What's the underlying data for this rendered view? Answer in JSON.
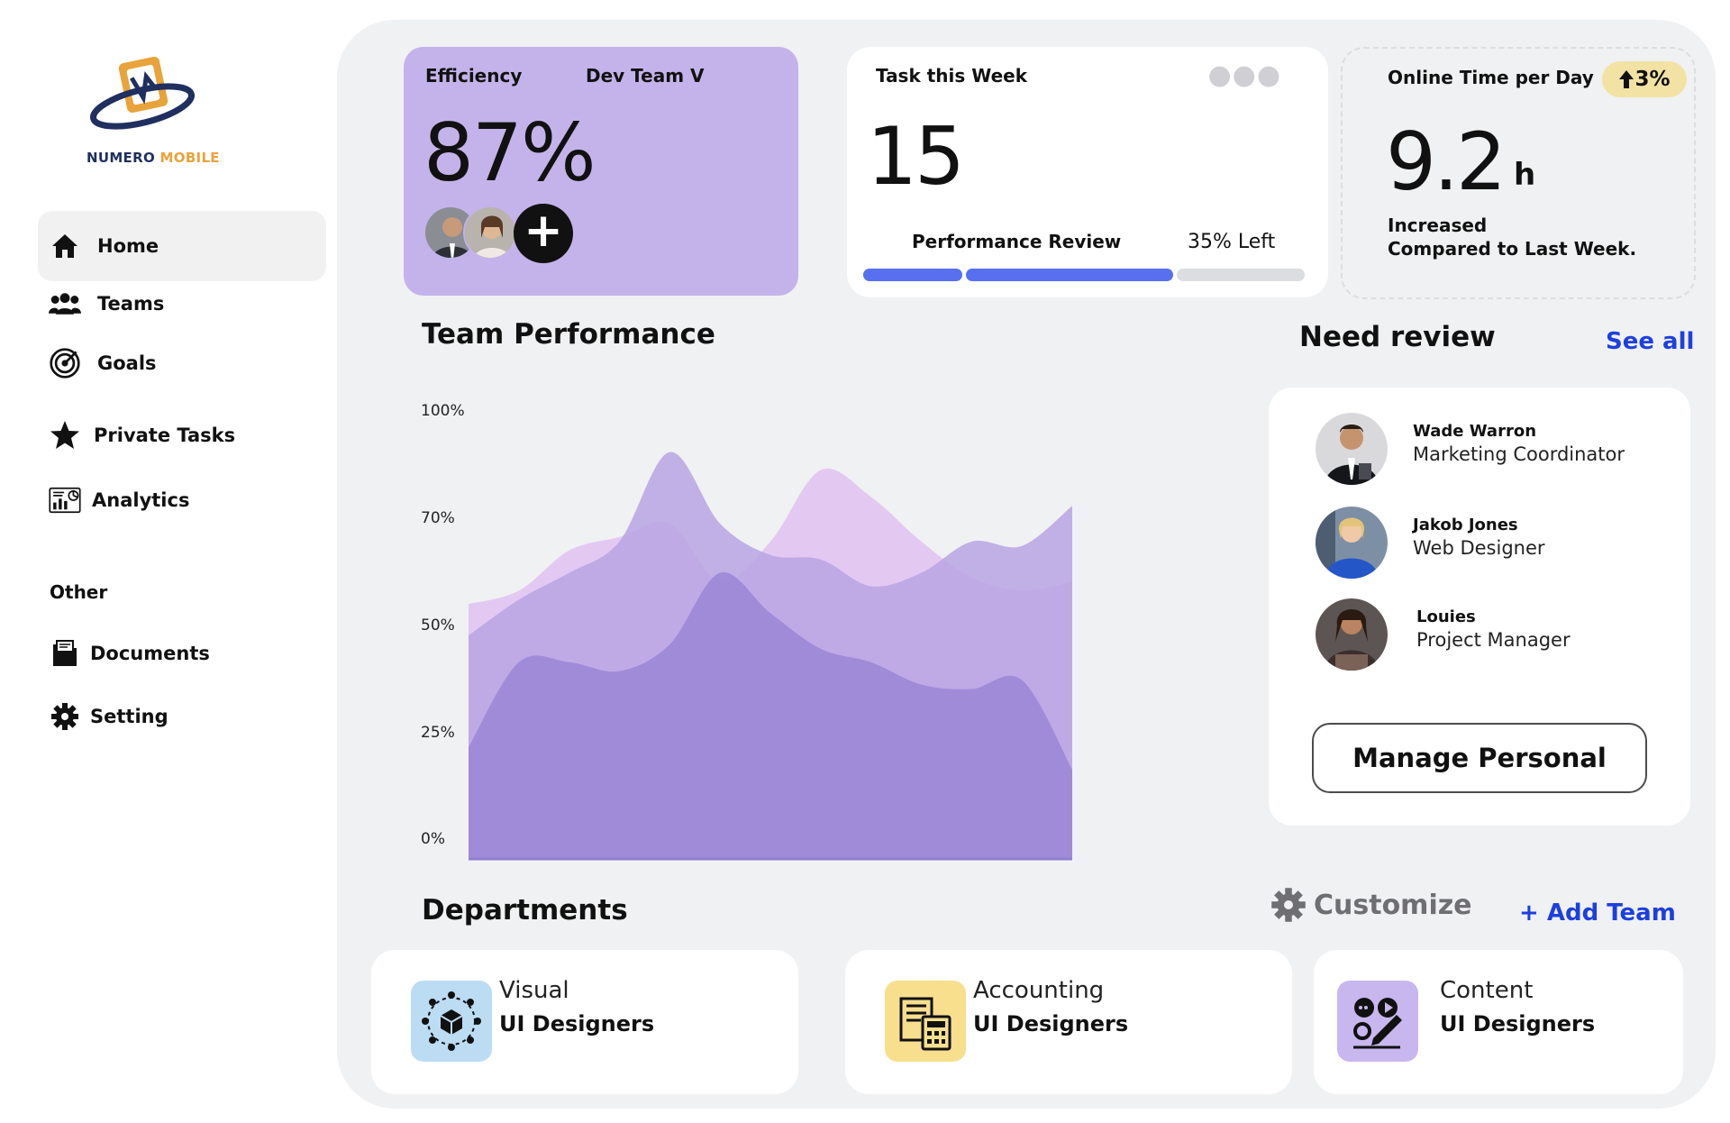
{
  "brand": {
    "name_part1": "NUMERO",
    "name_part2": "MOBILE",
    "colors": {
      "navy": "#1f2f5f",
      "gold": "#e8a33a"
    }
  },
  "sidebar": {
    "items": [
      {
        "label": "Home",
        "icon": "home-icon",
        "active": true
      },
      {
        "label": "Teams",
        "icon": "users-icon"
      },
      {
        "label": "Goals",
        "icon": "target-icon"
      },
      {
        "label": "Private Tasks",
        "icon": "star-icon"
      },
      {
        "label": "Analytics",
        "icon": "analytics-icon"
      }
    ],
    "other_label": "Other",
    "other_items": [
      {
        "label": "Documents",
        "icon": "documents-icon"
      },
      {
        "label": "Setting",
        "icon": "gear-icon"
      }
    ]
  },
  "efficiency": {
    "label": "Efficiency",
    "team_select": "Dev Team V",
    "value": "87%",
    "add_symbol": "+"
  },
  "tasks": {
    "label": "Task this Week",
    "value": "15",
    "review_label": "Performance Review",
    "left_label": "35% Left",
    "progress": 0.65
  },
  "online": {
    "label": "Online Time per Day",
    "badge": "3%",
    "value": "9.2",
    "unit": "h",
    "sub1": "Increased",
    "sub2": "Compared to Last Week."
  },
  "team_performance": {
    "title": "Team Performance"
  },
  "chart_data": {
    "type": "area",
    "title": "Team Performance",
    "y_ticks": [
      "100%",
      "70%",
      "50%",
      "25%",
      "0%"
    ],
    "y_tick_values": [
      100,
      70,
      50,
      25,
      0
    ],
    "ylim": [
      0,
      100
    ],
    "x": [
      0,
      1,
      2,
      3,
      4,
      5,
      6,
      7,
      8,
      9,
      10,
      11,
      12
    ],
    "series": [
      {
        "values": [
          57,
          60,
          69,
          72,
          75,
          62,
          71,
          87,
          81,
          71,
          63,
          60,
          62
        ],
        "color": "#e3c9f2"
      },
      {
        "values": [
          50,
          58,
          64,
          71,
          91,
          75,
          68,
          67,
          61,
          64,
          71,
          70,
          79
        ],
        "color": "#b9a4e4"
      },
      {
        "values": [
          25,
          44,
          44,
          42,
          48,
          64,
          55,
          47,
          44,
          39,
          38,
          40,
          20
        ],
        "color": "#9a86d6"
      }
    ]
  },
  "review": {
    "title": "Need review",
    "see_all": "See all",
    "people": [
      {
        "name": "Wade Warron",
        "role": "Marketing Coordinator"
      },
      {
        "name": "Jakob Jones",
        "role": "Web Designer"
      },
      {
        "name": "Louies",
        "role": "Project Manager"
      }
    ],
    "manage_button": "Manage Personal"
  },
  "departments": {
    "title": "Departments",
    "customize": "Customize",
    "add_team": "+ Add Team",
    "items": [
      {
        "name": "Visual",
        "sub": "UI Designers",
        "icon": "cube-network-icon",
        "bg": "#bcdcf3"
      },
      {
        "name": "Accounting",
        "sub": "UI Designers",
        "icon": "calculator-icon",
        "bg": "#f8df8e"
      },
      {
        "name": "Content",
        "sub": "UI Designers",
        "icon": "content-edit-icon",
        "bg": "#c8b6ef"
      }
    ]
  },
  "colors": {
    "accent_purple": "#c4b3ea",
    "progress_blue": "#5870f0",
    "link_blue": "#1d3fe0",
    "badge_gold": "#f2e2a4"
  }
}
